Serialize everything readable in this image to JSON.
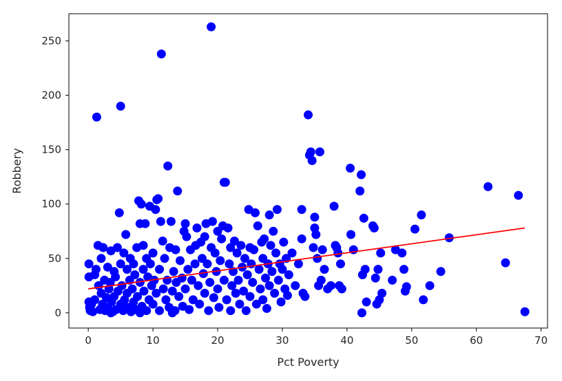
{
  "chart_data": {
    "type": "scatter",
    "title": "",
    "xlabel": "Pct Poverty",
    "ylabel": "Robbery",
    "xlim": [
      -3,
      71
    ],
    "ylim": [
      -14,
      275
    ],
    "xticks": [
      0,
      10,
      20,
      30,
      40,
      50,
      60,
      70
    ],
    "yticks": [
      0,
      50,
      100,
      150,
      200,
      250
    ],
    "grid": false,
    "legend": "none",
    "colors": {
      "points": "#0000ff",
      "fit_line": "#ff0000",
      "axes": "#000000",
      "text": "#262626"
    },
    "points": [
      [
        0.1,
        45
      ],
      [
        0.1,
        33
      ],
      [
        0.1,
        10
      ],
      [
        0.2,
        5
      ],
      [
        0.3,
        2
      ],
      [
        0.5,
        8
      ],
      [
        0.7,
        1
      ],
      [
        1.0,
        35
      ],
      [
        1.0,
        12
      ],
      [
        1.2,
        40
      ],
      [
        1.3,
        180
      ],
      [
        1.5,
        62
      ],
      [
        1.6,
        25
      ],
      [
        1.8,
        3
      ],
      [
        2.0,
        50
      ],
      [
        2.0,
        18
      ],
      [
        2.2,
        8
      ],
      [
        2.3,
        60
      ],
      [
        2.5,
        30
      ],
      [
        2.6,
        2
      ],
      [
        2.8,
        14
      ],
      [
        3.0,
        42
      ],
      [
        3.0,
        5
      ],
      [
        3.2,
        22
      ],
      [
        3.4,
        28
      ],
      [
        3.5,
        57
      ],
      [
        3.6,
        10
      ],
      [
        3.8,
        1
      ],
      [
        4.0,
        38
      ],
      [
        4.0,
        15
      ],
      [
        4.2,
        33
      ],
      [
        4.3,
        3
      ],
      [
        4.5,
        60
      ],
      [
        4.6,
        20
      ],
      [
        4.8,
        92
      ],
      [
        5.0,
        190
      ],
      [
        5.0,
        45
      ],
      [
        5.0,
        8
      ],
      [
        5.2,
        25
      ],
      [
        5.4,
        2
      ],
      [
        5.5,
        55
      ],
      [
        5.6,
        12
      ],
      [
        5.8,
        72
      ],
      [
        6.0,
        40
      ],
      [
        6.0,
        18
      ],
      [
        6.2,
        5
      ],
      [
        6.4,
        30
      ],
      [
        6.5,
        50
      ],
      [
        6.6,
        1
      ],
      [
        6.8,
        22
      ],
      [
        7.0,
        45
      ],
      [
        7.0,
        10
      ],
      [
        7.2,
        35
      ],
      [
        7.3,
        3
      ],
      [
        7.5,
        60
      ],
      [
        7.6,
        15
      ],
      [
        7.8,
        103
      ],
      [
        8.0,
        82
      ],
      [
        8.0,
        28
      ],
      [
        8.2,
        100
      ],
      [
        8.3,
        6
      ],
      [
        8.5,
        40
      ],
      [
        8.5,
        62
      ],
      [
        8.6,
        20
      ],
      [
        8.8,
        82
      ],
      [
        9.0,
        50
      ],
      [
        9.0,
        2
      ],
      [
        9.2,
        33
      ],
      [
        9.4,
        12
      ],
      [
        9.5,
        98
      ],
      [
        9.6,
        45
      ],
      [
        9.8,
        25
      ],
      [
        10.0,
        55
      ],
      [
        10.0,
        8
      ],
      [
        10.2,
        30
      ],
      [
        10.4,
        95
      ],
      [
        10.5,
        18
      ],
      [
        10.6,
        104
      ],
      [
        10.8,
        105
      ],
      [
        11.0,
        2
      ],
      [
        11.0,
        40
      ],
      [
        11.2,
        84
      ],
      [
        11.3,
        238
      ],
      [
        11.5,
        66
      ],
      [
        11.6,
        22
      ],
      [
        11.8,
        50
      ],
      [
        12.0,
        12
      ],
      [
        12.2,
        30
      ],
      [
        12.3,
        135
      ],
      [
        12.5,
        5
      ],
      [
        12.6,
        60
      ],
      [
        12.8,
        84
      ],
      [
        13.0,
        20
      ],
      [
        13.2,
        38
      ],
      [
        13.4,
        2
      ],
      [
        13.5,
        58
      ],
      [
        13.6,
        28
      ],
      [
        13.8,
        112
      ],
      [
        14.0,
        15
      ],
      [
        14.2,
        48
      ],
      [
        14.5,
        32
      ],
      [
        14.6,
        6
      ],
      [
        14.8,
        75
      ],
      [
        15.0,
        82
      ],
      [
        15.0,
        22
      ],
      [
        15.2,
        70
      ],
      [
        15.4,
        40
      ],
      [
        15.6,
        3
      ],
      [
        15.8,
        58
      ],
      [
        16.0,
        30
      ],
      [
        16.2,
        12
      ],
      [
        16.5,
        45
      ],
      [
        16.6,
        62
      ],
      [
        16.8,
        78
      ],
      [
        17.0,
        25
      ],
      [
        17.2,
        8
      ],
      [
        17.4,
        65
      ],
      [
        17.6,
        50
      ],
      [
        17.8,
        36
      ],
      [
        18.0,
        18
      ],
      [
        18.0,
        70
      ],
      [
        18.2,
        82
      ],
      [
        18.4,
        45
      ],
      [
        18.6,
        2
      ],
      [
        18.8,
        28
      ],
      [
        19.0,
        263
      ],
      [
        19.0,
        60
      ],
      [
        19.2,
        84
      ],
      [
        19.4,
        14
      ],
      [
        19.6,
        55
      ],
      [
        19.8,
        38
      ],
      [
        20.0,
        75
      ],
      [
        20.0,
        22
      ],
      [
        20.2,
        5
      ],
      [
        20.4,
        48
      ],
      [
        20.6,
        68
      ],
      [
        20.8,
        80
      ],
      [
        21.0,
        30
      ],
      [
        21.0,
        120
      ],
      [
        21.2,
        120
      ],
      [
        21.4,
        12
      ],
      [
        21.6,
        78
      ],
      [
        21.8,
        45
      ],
      [
        22.0,
        60
      ],
      [
        22.0,
        2
      ],
      [
        22.2,
        25
      ],
      [
        22.4,
        38
      ],
      [
        22.6,
        66
      ],
      [
        22.8,
        18
      ],
      [
        23.0,
        55
      ],
      [
        23.2,
        30
      ],
      [
        23.4,
        8
      ],
      [
        23.6,
        62
      ],
      [
        23.8,
        42
      ],
      [
        24.0,
        20
      ],
      [
        24.2,
        50
      ],
      [
        24.4,
        2
      ],
      [
        24.6,
        35
      ],
      [
        24.8,
        95
      ],
      [
        25.0,
        60
      ],
      [
        25.0,
        15
      ],
      [
        25.2,
        45
      ],
      [
        25.4,
        28
      ],
      [
        25.6,
        58
      ],
      [
        25.8,
        92
      ],
      [
        26.0,
        8
      ],
      [
        26.2,
        80
      ],
      [
        26.4,
        40
      ],
      [
        26.6,
        22
      ],
      [
        26.8,
        65
      ],
      [
        27.0,
        50
      ],
      [
        27.0,
        12
      ],
      [
        27.2,
        68
      ],
      [
        27.4,
        32
      ],
      [
        27.6,
        4
      ],
      [
        27.8,
        45
      ],
      [
        28.0,
        90
      ],
      [
        28.0,
        25
      ],
      [
        28.2,
        62
      ],
      [
        28.4,
        38
      ],
      [
        28.6,
        75
      ],
      [
        28.8,
        18
      ],
      [
        29.0,
        55
      ],
      [
        29.2,
        95
      ],
      [
        29.4,
        30
      ],
      [
        29.6,
        45
      ],
      [
        29.8,
        10
      ],
      [
        30.0,
        40
      ],
      [
        30.2,
        65
      ],
      [
        30.4,
        22
      ],
      [
        30.6,
        50
      ],
      [
        30.8,
        16
      ],
      [
        31.0,
        35
      ],
      [
        31.5,
        55
      ],
      [
        32.0,
        25
      ],
      [
        32.5,
        45
      ],
      [
        33.0,
        95
      ],
      [
        33.0,
        68
      ],
      [
        33.2,
        18
      ],
      [
        33.5,
        15
      ],
      [
        34.0,
        182
      ],
      [
        34.2,
        145
      ],
      [
        34.4,
        148
      ],
      [
        34.6,
        140
      ],
      [
        34.8,
        60
      ],
      [
        35.0,
        88
      ],
      [
        35.0,
        78
      ],
      [
        35.2,
        72
      ],
      [
        35.4,
        50
      ],
      [
        35.6,
        25
      ],
      [
        35.8,
        148
      ],
      [
        36.0,
        30
      ],
      [
        36.2,
        58
      ],
      [
        36.5,
        40
      ],
      [
        37.0,
        22
      ],
      [
        37.5,
        25
      ],
      [
        38.0,
        98
      ],
      [
        38.2,
        62
      ],
      [
        38.4,
        60
      ],
      [
        38.6,
        55
      ],
      [
        38.8,
        25
      ],
      [
        39.0,
        45
      ],
      [
        39.2,
        22
      ],
      [
        40.5,
        133
      ],
      [
        40.6,
        72
      ],
      [
        41.0,
        58
      ],
      [
        42.0,
        112
      ],
      [
        42.2,
        127
      ],
      [
        42.4,
        35
      ],
      [
        42.6,
        87
      ],
      [
        42.8,
        40
      ],
      [
        43.0,
        10
      ],
      [
        44.0,
        80
      ],
      [
        44.2,
        78
      ],
      [
        44.4,
        32
      ],
      [
        44.6,
        8
      ],
      [
        44.8,
        40
      ],
      [
        45.0,
        12
      ],
      [
        45.2,
        55
      ],
      [
        45.4,
        18
      ],
      [
        47.0,
        30
      ],
      [
        47.5,
        58
      ],
      [
        48.5,
        55
      ],
      [
        48.8,
        40
      ],
      [
        49.0,
        20
      ],
      [
        49.2,
        24
      ],
      [
        50.5,
        77
      ],
      [
        51.5,
        90
      ],
      [
        51.8,
        12
      ],
      [
        52.8,
        25
      ],
      [
        54.5,
        38
      ],
      [
        55.8,
        69
      ],
      [
        61.8,
        116
      ],
      [
        64.5,
        46
      ],
      [
        66.5,
        108
      ],
      [
        67.5,
        1
      ],
      [
        42.3,
        0
      ],
      [
        3.5,
        0
      ],
      [
        8.0,
        0
      ],
      [
        13.0,
        0
      ]
    ],
    "fit_line": {
      "x": [
        0,
        67.5
      ],
      "y": [
        22,
        78
      ]
    }
  }
}
